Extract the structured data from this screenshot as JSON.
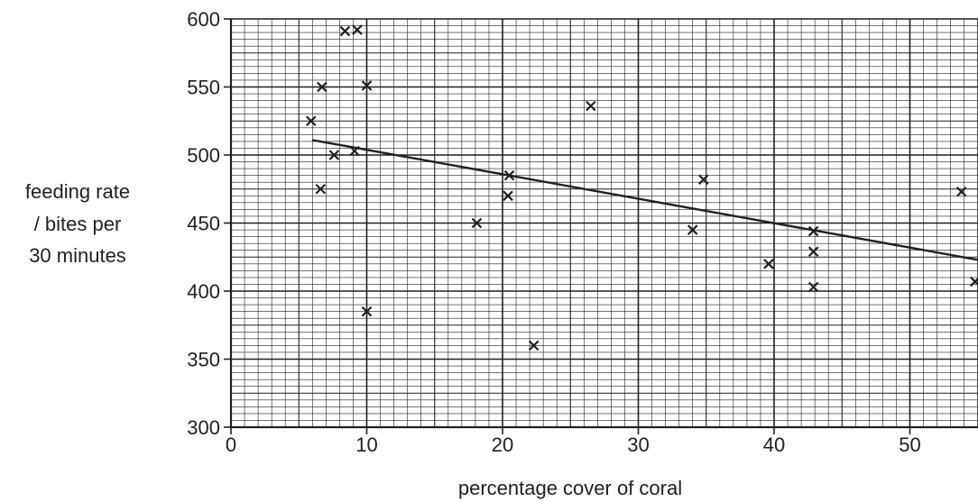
{
  "chart_data": {
    "type": "scatter",
    "title": "",
    "xlabel": "percentage cover of coral",
    "ylabel_lines": [
      "feeding rate",
      "/ bites per",
      "30 minutes"
    ],
    "xlim": [
      0,
      55
    ],
    "ylim": [
      300,
      600
    ],
    "x_ticks": [
      0,
      10,
      20,
      30,
      40,
      50
    ],
    "y_ticks": [
      300,
      350,
      400,
      450,
      500,
      550,
      600
    ],
    "x_minor_step": 1,
    "y_minor_step": 5,
    "grid": true,
    "marker": "cross",
    "points": [
      {
        "x": 8.4,
        "y": 591
      },
      {
        "x": 9.3,
        "y": 592
      },
      {
        "x": 6.7,
        "y": 550
      },
      {
        "x": 10.0,
        "y": 551
      },
      {
        "x": 5.9,
        "y": 525
      },
      {
        "x": 9.1,
        "y": 503
      },
      {
        "x": 7.6,
        "y": 500
      },
      {
        "x": 6.6,
        "y": 475
      },
      {
        "x": 10.0,
        "y": 385
      },
      {
        "x": 18.1,
        "y": 450
      },
      {
        "x": 20.5,
        "y": 485
      },
      {
        "x": 20.4,
        "y": 470
      },
      {
        "x": 22.3,
        "y": 360
      },
      {
        "x": 26.5,
        "y": 536
      },
      {
        "x": 34.8,
        "y": 482
      },
      {
        "x": 34.0,
        "y": 445
      },
      {
        "x": 39.6,
        "y": 420
      },
      {
        "x": 42.9,
        "y": 444
      },
      {
        "x": 42.9,
        "y": 429
      },
      {
        "x": 42.9,
        "y": 403
      },
      {
        "x": 53.8,
        "y": 473
      },
      {
        "x": 54.8,
        "y": 407
      }
    ],
    "trendline": {
      "x": [
        6,
        55
      ],
      "y": [
        511,
        423
      ]
    }
  }
}
